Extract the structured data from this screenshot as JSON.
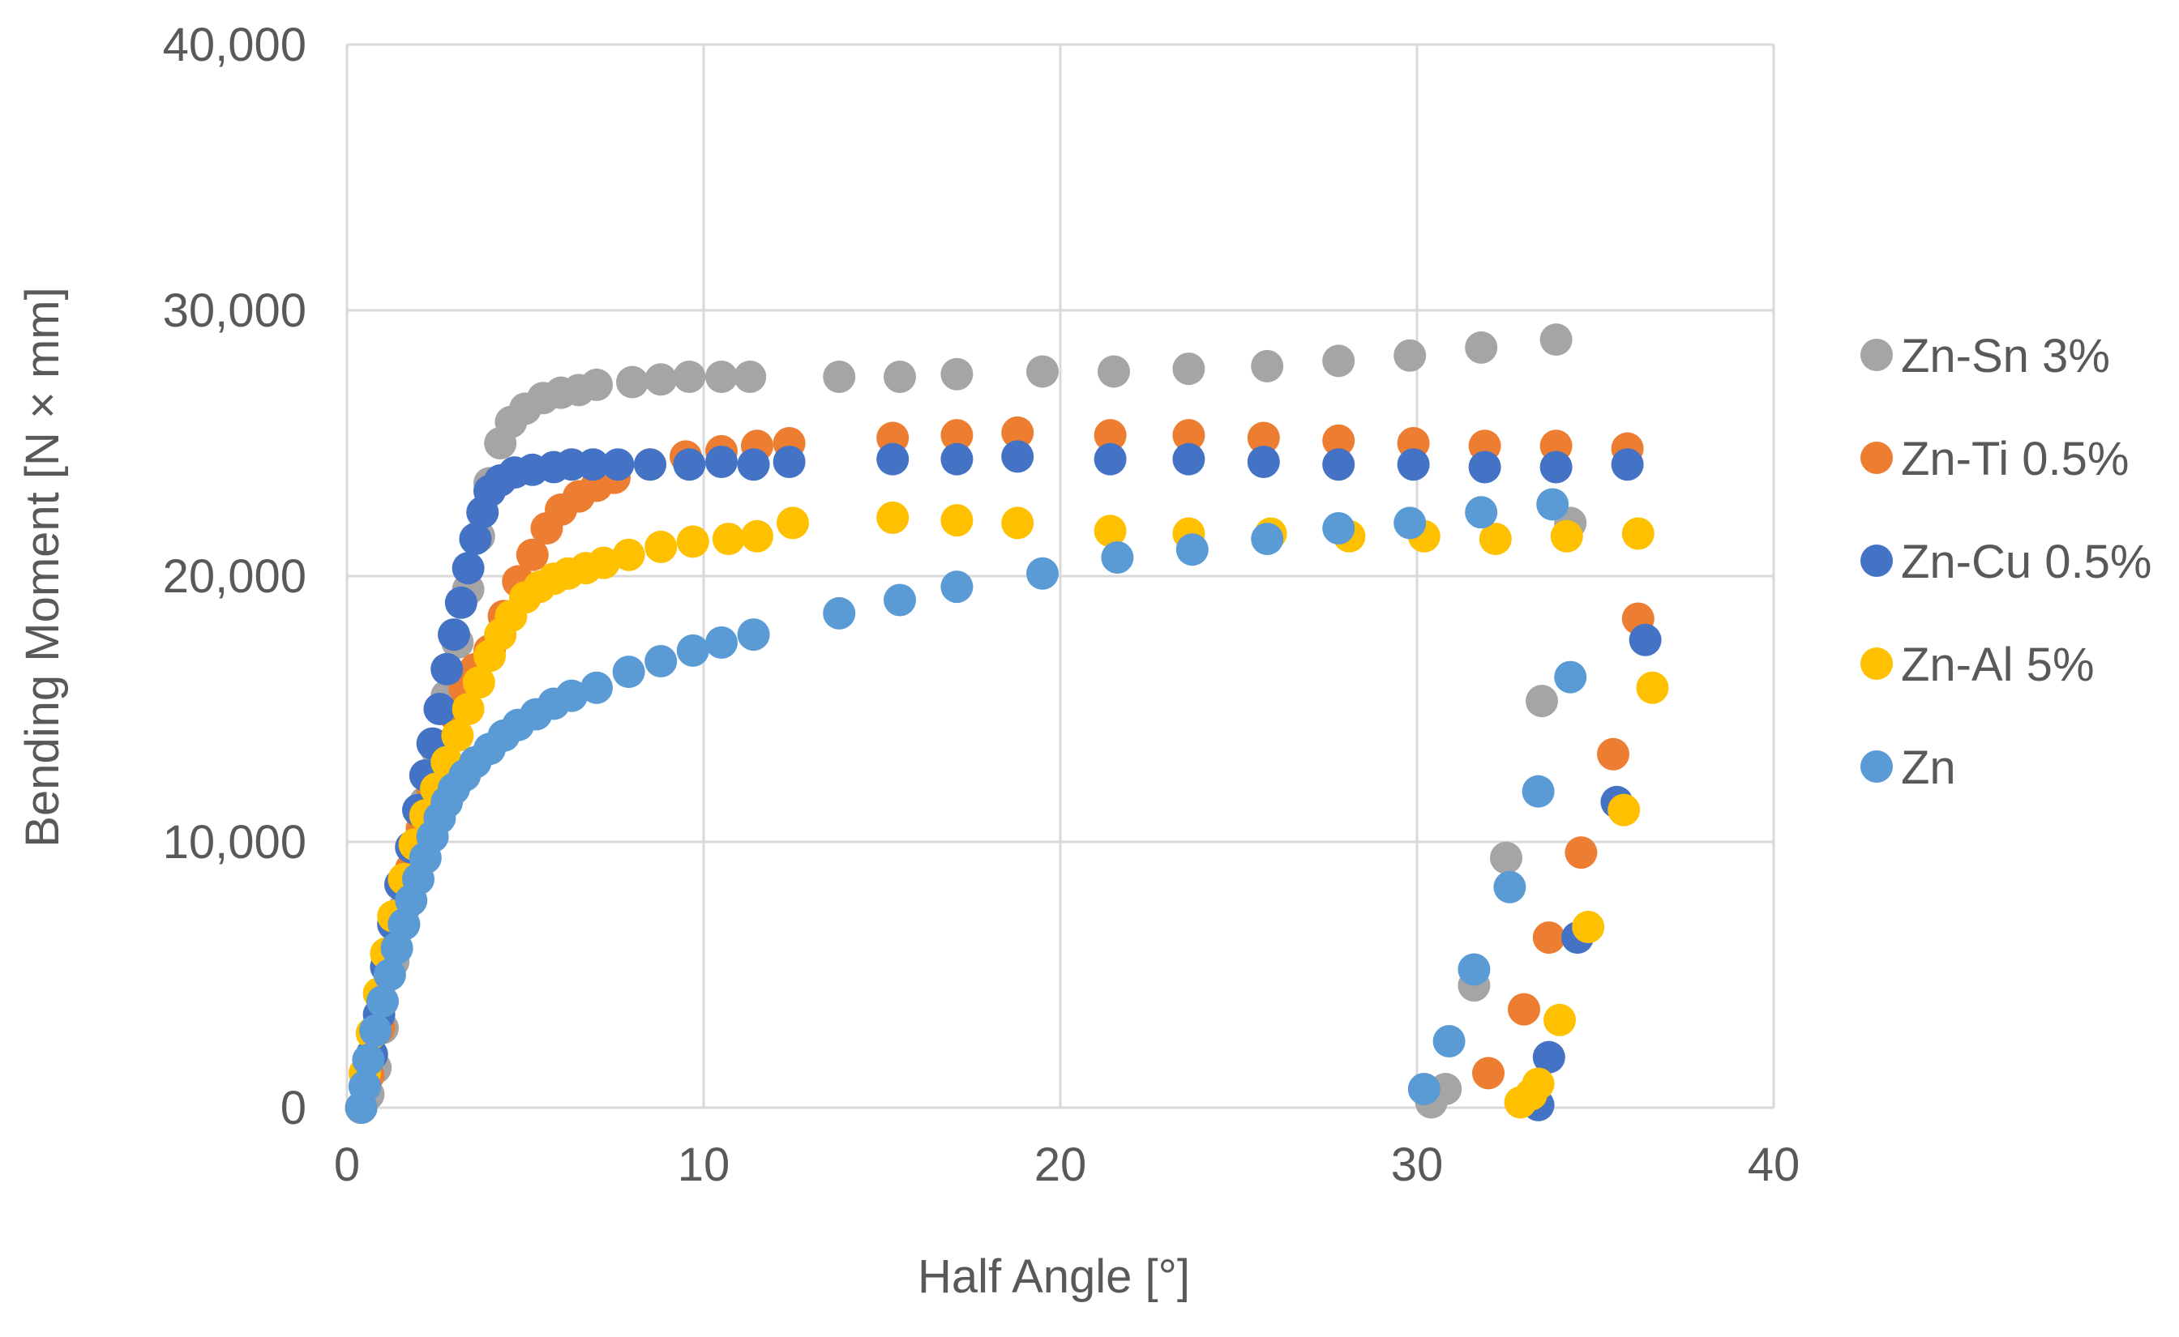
{
  "chart_data": {
    "type": "scatter",
    "title": "",
    "xlabel": "Half Angle [°]",
    "ylabel": "Bending Moment [N × mm]",
    "xlim": [
      0,
      40
    ],
    "ylim": [
      0,
      40000
    ],
    "x_ticks": [
      0,
      10,
      20,
      30,
      40
    ],
    "y_ticks": [
      0,
      10000,
      20000,
      30000,
      40000
    ],
    "x_tick_labels": [
      "0",
      "10",
      "20",
      "30",
      "40"
    ],
    "y_tick_labels": [
      "0",
      "10,000",
      "20,000",
      "30,000",
      "40,000"
    ],
    "grid": true,
    "legend_position": "right",
    "series": [
      {
        "name": "Zn-Sn 3%",
        "color": "#A5A5A5",
        "points": [
          [
            0.4,
            0
          ],
          [
            0.6,
            500
          ],
          [
            0.8,
            1500
          ],
          [
            1.0,
            3000
          ],
          [
            1.3,
            5500
          ],
          [
            1.6,
            7500
          ],
          [
            1.9,
            9500
          ],
          [
            2.2,
            11500
          ],
          [
            2.5,
            13500
          ],
          [
            2.8,
            15500
          ],
          [
            3.1,
            17500
          ],
          [
            3.4,
            19500
          ],
          [
            3.7,
            21500
          ],
          [
            4.0,
            23500
          ],
          [
            4.3,
            25000
          ],
          [
            4.6,
            25800
          ],
          [
            5.0,
            26300
          ],
          [
            5.5,
            26700
          ],
          [
            6.0,
            26900
          ],
          [
            6.5,
            27000
          ],
          [
            7.0,
            27200
          ],
          [
            8.0,
            27300
          ],
          [
            8.8,
            27400
          ],
          [
            9.6,
            27500
          ],
          [
            10.5,
            27500
          ],
          [
            11.3,
            27500
          ],
          [
            13.8,
            27500
          ],
          [
            15.5,
            27500
          ],
          [
            17.1,
            27600
          ],
          [
            19.5,
            27700
          ],
          [
            21.5,
            27700
          ],
          [
            23.6,
            27800
          ],
          [
            25.8,
            27900
          ],
          [
            27.8,
            28100
          ],
          [
            29.8,
            28300
          ],
          [
            31.8,
            28600
          ],
          [
            33.9,
            28900
          ],
          [
            34.3,
            22000
          ],
          [
            33.5,
            15300
          ],
          [
            32.5,
            9400
          ],
          [
            31.6,
            4600
          ],
          [
            30.8,
            700
          ],
          [
            30.4,
            200
          ]
        ]
      },
      {
        "name": "Zn-Ti 0.5%",
        "color": "#ED7D31",
        "points": [
          [
            0.4,
            0
          ],
          [
            0.6,
            1200
          ],
          [
            0.9,
            3000
          ],
          [
            1.2,
            5000
          ],
          [
            1.5,
            7000
          ],
          [
            1.8,
            9000
          ],
          [
            2.1,
            10500
          ],
          [
            2.4,
            12000
          ],
          [
            2.7,
            13500
          ],
          [
            3.0,
            14800
          ],
          [
            3.3,
            15800
          ],
          [
            3.6,
            16500
          ],
          [
            4.0,
            17200
          ],
          [
            4.4,
            18500
          ],
          [
            4.8,
            19800
          ],
          [
            5.2,
            20800
          ],
          [
            5.6,
            21800
          ],
          [
            6.0,
            22500
          ],
          [
            6.5,
            23000
          ],
          [
            7.0,
            23400
          ],
          [
            7.5,
            23700
          ],
          [
            8.5,
            24200
          ],
          [
            9.5,
            24500
          ],
          [
            10.5,
            24700
          ],
          [
            11.5,
            24900
          ],
          [
            12.4,
            25000
          ],
          [
            15.3,
            25200
          ],
          [
            17.1,
            25300
          ],
          [
            18.8,
            25400
          ],
          [
            21.4,
            25300
          ],
          [
            23.6,
            25300
          ],
          [
            25.7,
            25200
          ],
          [
            27.8,
            25100
          ],
          [
            29.9,
            25000
          ],
          [
            31.9,
            24900
          ],
          [
            33.9,
            24900
          ],
          [
            35.9,
            24800
          ],
          [
            36.2,
            18400
          ],
          [
            35.5,
            13300
          ],
          [
            34.6,
            9600
          ],
          [
            33.7,
            6400
          ],
          [
            33.0,
            3700
          ],
          [
            32.0,
            1300
          ]
        ]
      },
      {
        "name": "Zn-Cu 0.5%",
        "color": "#4472C4",
        "points": [
          [
            0.4,
            0
          ],
          [
            0.5,
            800
          ],
          [
            0.7,
            2000
          ],
          [
            0.9,
            3500
          ],
          [
            1.1,
            5300
          ],
          [
            1.3,
            6900
          ],
          [
            1.5,
            8400
          ],
          [
            1.8,
            9800
          ],
          [
            2.0,
            11200
          ],
          [
            2.2,
            12500
          ],
          [
            2.4,
            13700
          ],
          [
            2.6,
            15000
          ],
          [
            2.8,
            16500
          ],
          [
            3.0,
            17800
          ],
          [
            3.2,
            19000
          ],
          [
            3.4,
            20300
          ],
          [
            3.6,
            21400
          ],
          [
            3.8,
            22400
          ],
          [
            4.0,
            23200
          ],
          [
            4.3,
            23600
          ],
          [
            4.7,
            23900
          ],
          [
            5.2,
            24000
          ],
          [
            5.8,
            24100
          ],
          [
            6.3,
            24200
          ],
          [
            6.9,
            24200
          ],
          [
            7.6,
            24200
          ],
          [
            8.5,
            24200
          ],
          [
            9.6,
            24200
          ],
          [
            10.5,
            24300
          ],
          [
            11.4,
            24200
          ],
          [
            12.4,
            24300
          ],
          [
            15.3,
            24400
          ],
          [
            17.1,
            24400
          ],
          [
            18.8,
            24500
          ],
          [
            21.4,
            24400
          ],
          [
            23.6,
            24400
          ],
          [
            25.7,
            24300
          ],
          [
            27.8,
            24200
          ],
          [
            29.9,
            24200
          ],
          [
            31.9,
            24100
          ],
          [
            33.9,
            24100
          ],
          [
            35.9,
            24200
          ],
          [
            36.4,
            17600
          ],
          [
            35.6,
            11500
          ],
          [
            34.5,
            6400
          ],
          [
            33.7,
            1900
          ],
          [
            33.4,
            100
          ]
        ]
      },
      {
        "name": "Zn-Al 5%",
        "color": "#FFC000",
        "points": [
          [
            0.4,
            0
          ],
          [
            0.5,
            1300
          ],
          [
            0.7,
            2800
          ],
          [
            0.9,
            4300
          ],
          [
            1.1,
            5800
          ],
          [
            1.3,
            7200
          ],
          [
            1.6,
            8600
          ],
          [
            1.9,
            9900
          ],
          [
            2.2,
            11000
          ],
          [
            2.5,
            12000
          ],
          [
            2.8,
            13000
          ],
          [
            3.1,
            14000
          ],
          [
            3.4,
            15000
          ],
          [
            3.7,
            16000
          ],
          [
            4.0,
            17000
          ],
          [
            4.3,
            17800
          ],
          [
            4.6,
            18500
          ],
          [
            5.0,
            19200
          ],
          [
            5.4,
            19600
          ],
          [
            5.8,
            19900
          ],
          [
            6.2,
            20100
          ],
          [
            6.7,
            20300
          ],
          [
            7.2,
            20500
          ],
          [
            7.9,
            20800
          ],
          [
            8.8,
            21100
          ],
          [
            9.7,
            21300
          ],
          [
            10.7,
            21400
          ],
          [
            11.5,
            21500
          ],
          [
            12.5,
            22000
          ],
          [
            15.3,
            22200
          ],
          [
            17.1,
            22100
          ],
          [
            18.8,
            22000
          ],
          [
            21.4,
            21700
          ],
          [
            23.6,
            21600
          ],
          [
            25.9,
            21600
          ],
          [
            28.1,
            21500
          ],
          [
            30.2,
            21500
          ],
          [
            32.2,
            21400
          ],
          [
            34.2,
            21500
          ],
          [
            36.2,
            21600
          ],
          [
            36.6,
            15800
          ],
          [
            35.8,
            11200
          ],
          [
            34.8,
            6800
          ],
          [
            34.0,
            3300
          ],
          [
            33.4,
            900
          ],
          [
            33.2,
            500
          ],
          [
            32.9,
            200
          ]
        ]
      },
      {
        "name": "Zn",
        "color": "#5B9BD5",
        "points": [
          [
            0.4,
            0
          ],
          [
            0.5,
            800
          ],
          [
            0.6,
            1800
          ],
          [
            0.8,
            2900
          ],
          [
            1.0,
            4000
          ],
          [
            1.2,
            5000
          ],
          [
            1.4,
            6000
          ],
          [
            1.6,
            6900
          ],
          [
            1.8,
            7800
          ],
          [
            2.0,
            8600
          ],
          [
            2.2,
            9400
          ],
          [
            2.4,
            10200
          ],
          [
            2.6,
            10900
          ],
          [
            2.8,
            11500
          ],
          [
            3.0,
            12000
          ],
          [
            3.3,
            12500
          ],
          [
            3.6,
            13000
          ],
          [
            4.0,
            13500
          ],
          [
            4.4,
            14000
          ],
          [
            4.8,
            14400
          ],
          [
            5.3,
            14800
          ],
          [
            5.8,
            15200
          ],
          [
            6.3,
            15500
          ],
          [
            7.0,
            15800
          ],
          [
            7.9,
            16400
          ],
          [
            8.8,
            16800
          ],
          [
            9.7,
            17200
          ],
          [
            10.5,
            17500
          ],
          [
            11.4,
            17800
          ],
          [
            13.8,
            18600
          ],
          [
            15.5,
            19100
          ],
          [
            17.1,
            19600
          ],
          [
            19.5,
            20100
          ],
          [
            21.6,
            20700
          ],
          [
            23.7,
            21000
          ],
          [
            25.8,
            21400
          ],
          [
            27.8,
            21800
          ],
          [
            29.8,
            22000
          ],
          [
            31.8,
            22400
          ],
          [
            33.8,
            22700
          ],
          [
            34.3,
            16200
          ],
          [
            33.4,
            11900
          ],
          [
            32.6,
            8300
          ],
          [
            31.6,
            5200
          ],
          [
            30.9,
            2500
          ],
          [
            30.2,
            700
          ]
        ]
      }
    ]
  }
}
